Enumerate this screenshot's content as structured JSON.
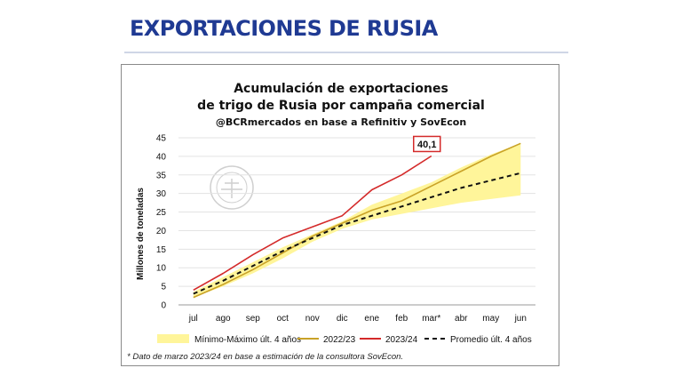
{
  "slide": {
    "title": "EXPORTACIONES DE RUSIA"
  },
  "chart": {
    "title_line1": "Acumulación de exportaciones",
    "title_line2": "de trigo de Rusia por campaña comercial",
    "subtitle": "@BCRmercados en base a Refinitiv y SovEcon",
    "ylabel": "Millones de toneladas",
    "callout": "40,1",
    "footnote": "* Dato de marzo 2023/24 en base a estimación de la consultora SovEcon."
  },
  "colors": {
    "title_blue": "#1f3a93",
    "band": "#fff59a",
    "s2223": "#c9a227",
    "s2324": "#d42a2a",
    "avg": "#111111"
  },
  "chart_data": {
    "type": "line",
    "categories": [
      "jul",
      "ago",
      "sep",
      "oct",
      "nov",
      "dic",
      "ene",
      "feb",
      "mar*",
      "abr",
      "may",
      "jun"
    ],
    "ylim": [
      0,
      45
    ],
    "yticks": [
      0,
      5,
      10,
      15,
      20,
      25,
      30,
      35,
      40,
      45
    ],
    "grid": true,
    "legend_position": "bottom",
    "band": {
      "name": "Mínimo-Máximo últ. 4 años",
      "min": [
        2.0,
        5.0,
        8.5,
        12.5,
        17.0,
        20.5,
        23.0,
        24.5,
        26.0,
        27.5,
        28.5,
        29.5
      ],
      "max": [
        3.5,
        7.5,
        11.5,
        15.5,
        19.0,
        22.5,
        27.0,
        30.0,
        33.0,
        37.0,
        40.5,
        43.5
      ]
    },
    "series": [
      {
        "name": "2022/23",
        "values": [
          2.0,
          5.5,
          9.5,
          14.0,
          18.5,
          22.0,
          25.5,
          28.0,
          32.0,
          36.0,
          40.0,
          43.5
        ],
        "style": "solid",
        "color": "#c9a227"
      },
      {
        "name": "2023/24",
        "values": [
          4.0,
          8.5,
          13.5,
          18.0,
          21.0,
          24.0,
          31.0,
          35.0,
          40.1,
          null,
          null,
          null
        ],
        "style": "solid",
        "color": "#d42a2a"
      },
      {
        "name": "Promedio últ. 4 años",
        "values": [
          3.0,
          6.5,
          10.5,
          14.5,
          18.0,
          21.5,
          24.0,
          26.5,
          29.0,
          31.5,
          33.5,
          35.5
        ],
        "style": "dashed",
        "color": "#111111"
      }
    ]
  }
}
